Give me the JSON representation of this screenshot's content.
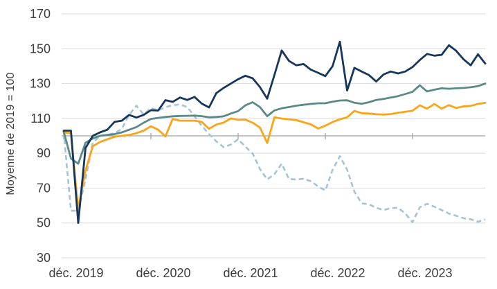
{
  "chart_data": {
    "type": "line",
    "title": "",
    "grid": "horizontal",
    "legend_position": "none",
    "reference_line": 100,
    "y_axis": {
      "label": "Moyenne de 2019 = 100",
      "ticks": [
        170,
        150,
        130,
        110,
        90,
        70,
        50,
        30
      ],
      "min": 30,
      "max": 170
    },
    "x_axis": {
      "tick_labels": [
        "déc. 2019",
        "déc. 2020",
        "déc. 2021",
        "déc. 2022",
        "déc. 2023"
      ],
      "points_per_year": 12,
      "n_points": 59,
      "start_month": "déc. 2019"
    },
    "series": [
      {
        "name": "series-lightblue-dashed",
        "color": "#a5c3d5",
        "style": "dashed",
        "values": [
          102.5,
          57,
          57,
          75,
          96,
          100,
          100.5,
          101.5,
          104,
          112,
          117.3,
          112.3,
          116,
          114.5,
          116.5,
          117.5,
          118,
          116.5,
          111.2,
          105.8,
          101,
          96.8,
          93.5,
          95,
          98,
          93.8,
          89.8,
          81,
          75,
          78,
          84,
          75.2,
          75,
          75.3,
          74,
          71,
          68.6,
          80.5,
          88.3,
          80.5,
          68,
          61.3,
          60.7,
          58.7,
          57.4,
          58.5,
          58.7,
          55.4,
          50.5,
          59,
          61,
          59.3,
          57.4,
          55.4,
          54.1,
          52.7,
          52.1,
          50.7,
          52
        ]
      },
      {
        "name": "series-orange",
        "color": "#faa519",
        "style": "solid",
        "values": [
          102,
          101.5,
          57.8,
          80,
          94,
          96.5,
          98,
          99.5,
          100,
          100.5,
          101.5,
          103,
          105.5,
          103.5,
          99.7,
          109.7,
          108.7,
          108.7,
          108.7,
          108,
          104,
          106.5,
          107.6,
          110,
          109.2,
          109.3,
          107.5,
          104.8,
          95.9,
          110.6,
          109.9,
          109.5,
          109,
          107.8,
          106.6,
          104.2,
          105.8,
          107.9,
          109.5,
          110.6,
          114.3,
          113,
          112.8,
          112.4,
          112.2,
          112.5,
          113.2,
          113.8,
          114.4,
          117.5,
          115.6,
          118.3,
          115.6,
          117.6,
          116,
          116.9,
          117.2,
          118.3,
          119
        ]
      },
      {
        "name": "series-teal",
        "color": "#5a8a88",
        "style": "solid",
        "values": [
          102.5,
          87,
          84,
          96,
          98.5,
          100,
          100.5,
          101,
          102,
          103.5,
          105,
          107.5,
          109.7,
          110.3,
          110.8,
          111.2,
          111.4,
          111.5,
          111.6,
          111.3,
          110.6,
          110.8,
          111.2,
          112.8,
          114.2,
          117.5,
          119.3,
          116.5,
          111.3,
          114.6,
          115.8,
          116.5,
          117.3,
          117.8,
          118.3,
          118.7,
          118.7,
          119.6,
          120.3,
          120.4,
          119,
          118.4,
          119.3,
          120.6,
          121.2,
          122,
          122.8,
          124,
          125.3,
          129,
          125.5,
          126.5,
          127.3,
          127,
          127.3,
          127.5,
          127.9,
          128.5,
          130
        ]
      },
      {
        "name": "series-navy",
        "color": "#16365c",
        "style": "solid",
        "values": [
          103,
          103,
          50,
          93,
          100,
          102,
          103.5,
          108,
          108.7,
          112,
          110.5,
          112,
          114.7,
          114.5,
          120.5,
          119.5,
          122,
          120.6,
          122.3,
          118.5,
          116.3,
          124.5,
          127.5,
          130,
          132.5,
          134.5,
          133,
          128,
          121.3,
          135,
          149,
          143,
          140.5,
          141.2,
          138,
          136.2,
          134.3,
          140,
          154,
          126,
          139,
          136.9,
          134.9,
          131.2,
          135.2,
          136.9,
          135.8,
          136.9,
          139.5,
          143.5,
          147,
          146,
          146.5,
          152,
          148.8,
          144,
          140.5,
          146.8,
          141.5
        ]
      }
    ],
    "style_hints": {
      "gridline_color": "#d9d9d9",
      "reference_line_color": "#9e9e9e",
      "text_color": "#3d3d3d"
    }
  }
}
